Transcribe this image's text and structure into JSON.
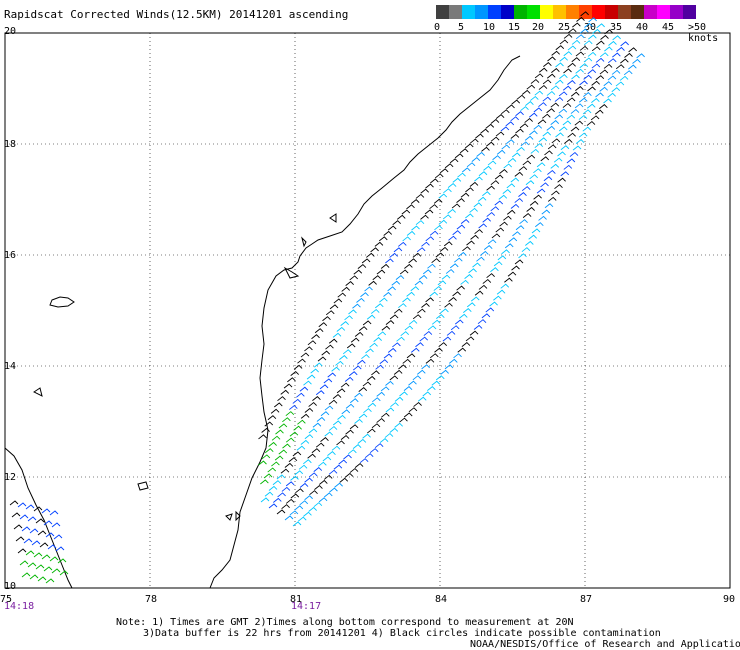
{
  "title": "Rapidscat Corrected Winds(12.5KM) 20141201 ascending",
  "legend": {
    "colors": [
      "#404040",
      "#7a7a7a",
      "#00c8ff",
      "#0096ff",
      "#0040ff",
      "#0000c8",
      "#00b400",
      "#00e000",
      "#ffff00",
      "#ffc000",
      "#ff8000",
      "#ff4000",
      "#ff0000",
      "#c80000",
      "#8c4020",
      "#5a2c10",
      "#c800c8",
      "#ff00ff",
      "#9600c8",
      "#5000a0"
    ],
    "labels": [
      "0",
      "5",
      "10",
      "15",
      "20",
      "25",
      "30",
      "35",
      "40",
      "45",
      ">50 knots"
    ]
  },
  "axes": {
    "lon_labels": [
      "75",
      "78",
      "81",
      "84",
      "87",
      "90"
    ],
    "lat_labels": [
      "20",
      "18",
      "16",
      "14",
      "12",
      "10"
    ]
  },
  "times": [
    "14:18",
    "14:17"
  ],
  "notes": {
    "line1": "Note: 1) Times are GMT 2)Times along bottom correspond to measurement at 20N",
    "line2": "3)Data buffer is 22 hrs from 20141201 4) Black circles indicate possible contamination",
    "line3": "NOAA/NESDIS/Office of Research and Applications"
  }
}
